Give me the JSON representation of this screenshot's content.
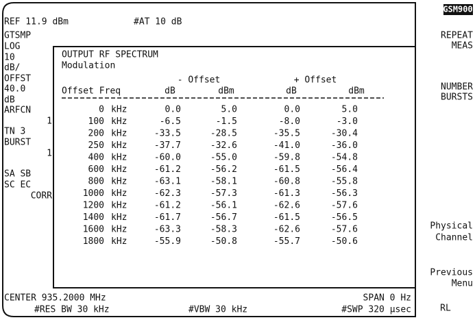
{
  "header": {
    "ref": "REF 11.9 dBm",
    "atten": "#AT 10 dB"
  },
  "annotations": [
    "GTSMP",
    "LOG",
    "10",
    "dB/",
    "OFFST",
    "40.0",
    "dB",
    "ARFCN",
    "1",
    "TN 3",
    "BURST",
    "1",
    "SA SB",
    "SC EC",
    "CORR"
  ],
  "softkeys": {
    "mode": "GSM900",
    "keys": [
      [
        "REPEAT",
        "MEAS"
      ],
      [
        "NUMBER",
        "BURSTS"
      ],
      [
        "Physical",
        "Channel"
      ],
      [
        "Previous",
        "Menu"
      ],
      [
        "RL"
      ]
    ]
  },
  "panel": {
    "title": "OUTPUT RF SPECTRUM",
    "subtitle": "Modulation",
    "groups": [
      "- Offset",
      "+ Offset"
    ],
    "columns": [
      "Offset Freq",
      "dB",
      "dBm",
      "dB",
      "dBm"
    ],
    "rows": [
      [
        "0",
        "kHz",
        "0.0",
        "5.0",
        "0.0",
        "5.0"
      ],
      [
        "100",
        "kHz",
        "-6.5",
        "-1.5",
        "-8.0",
        "-3.0"
      ],
      [
        "200",
        "kHz",
        "-33.5",
        "-28.5",
        "-35.5",
        "-30.4"
      ],
      [
        "250",
        "kHz",
        "-37.7",
        "-32.6",
        "-41.0",
        "-36.0"
      ],
      [
        "400",
        "kHz",
        "-60.0",
        "-55.0",
        "-59.8",
        "-54.8"
      ],
      [
        "600",
        "kHz",
        "-61.2",
        "-56.2",
        "-61.5",
        "-56.4"
      ],
      [
        "800",
        "kHz",
        "-63.1",
        "-58.1",
        "-60.8",
        "-55.8"
      ],
      [
        "1000",
        "kHz",
        "-62.3",
        "-57.3",
        "-61.3",
        "-56.3"
      ],
      [
        "1200",
        "kHz",
        "-61.2",
        "-56.1",
        "-62.6",
        "-57.6"
      ],
      [
        "1400",
        "kHz",
        "-61.7",
        "-56.7",
        "-61.5",
        "-56.5"
      ],
      [
        "1600",
        "kHz",
        "-63.3",
        "-58.3",
        "-62.6",
        "-57.6"
      ],
      [
        "1800",
        "kHz",
        "-55.9",
        "-50.8",
        "-55.7",
        "-50.6"
      ]
    ]
  },
  "footer": {
    "center": "CENTER 935.2000 MHz",
    "span": "SPAN 0 Hz",
    "rbw": "#RES BW 30 kHz",
    "vbw": "#VBW 30 kHz",
    "sweep": "#SWP 320 µsec"
  }
}
